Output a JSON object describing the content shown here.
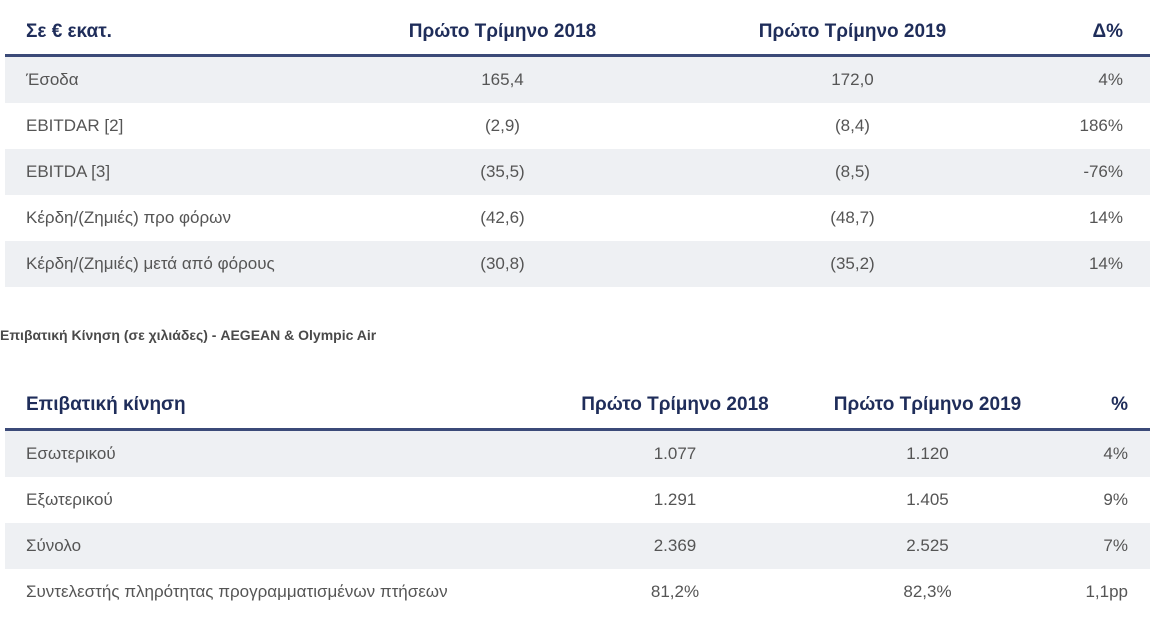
{
  "financial_table": {
    "headers": [
      "Σε € εκατ.",
      "Πρώτο Τρίμηνο 2018",
      "Πρώτο Τρίμηνο 2019",
      "Δ%"
    ],
    "rows": [
      [
        "Έσοδα",
        "165,4",
        "172,0",
        "4%"
      ],
      [
        "EBITDAR [2]",
        "(2,9)",
        "(8,4)",
        "186%"
      ],
      [
        "EBITDA [3]",
        "(35,5)",
        "(8,5)",
        "-76%"
      ],
      [
        "Κέρδη/(Ζημιές) προ φόρων",
        "(42,6)",
        "(48,7)",
        "14%"
      ],
      [
        "Κέρδη/(Ζημιές) μετά από φόρους",
        "(30,8)",
        "(35,2)",
        "14%"
      ]
    ]
  },
  "traffic_caption": "Επιβατική Κίνηση (σε χιλιάδες) - AEGEAN & Olympic Air",
  "traffic_table": {
    "headers": [
      "Επιβατική κίνηση",
      "Πρώτο Τρίμηνο 2018",
      "Πρώτο Τρίμηνο 2019",
      "%"
    ],
    "rows": [
      [
        "Εσωτερικού",
        "1.077",
        "1.120",
        "4%"
      ],
      [
        "Εξωτερικού",
        "1.291",
        "1.405",
        "9%"
      ],
      [
        "Σύνολο",
        "2.369",
        "2.525",
        "7%"
      ],
      [
        "Συντελεστής πληρότητας προγραμματισμένων πτήσεων",
        "81,2%",
        "82,3%",
        "1,1pp"
      ]
    ]
  }
}
